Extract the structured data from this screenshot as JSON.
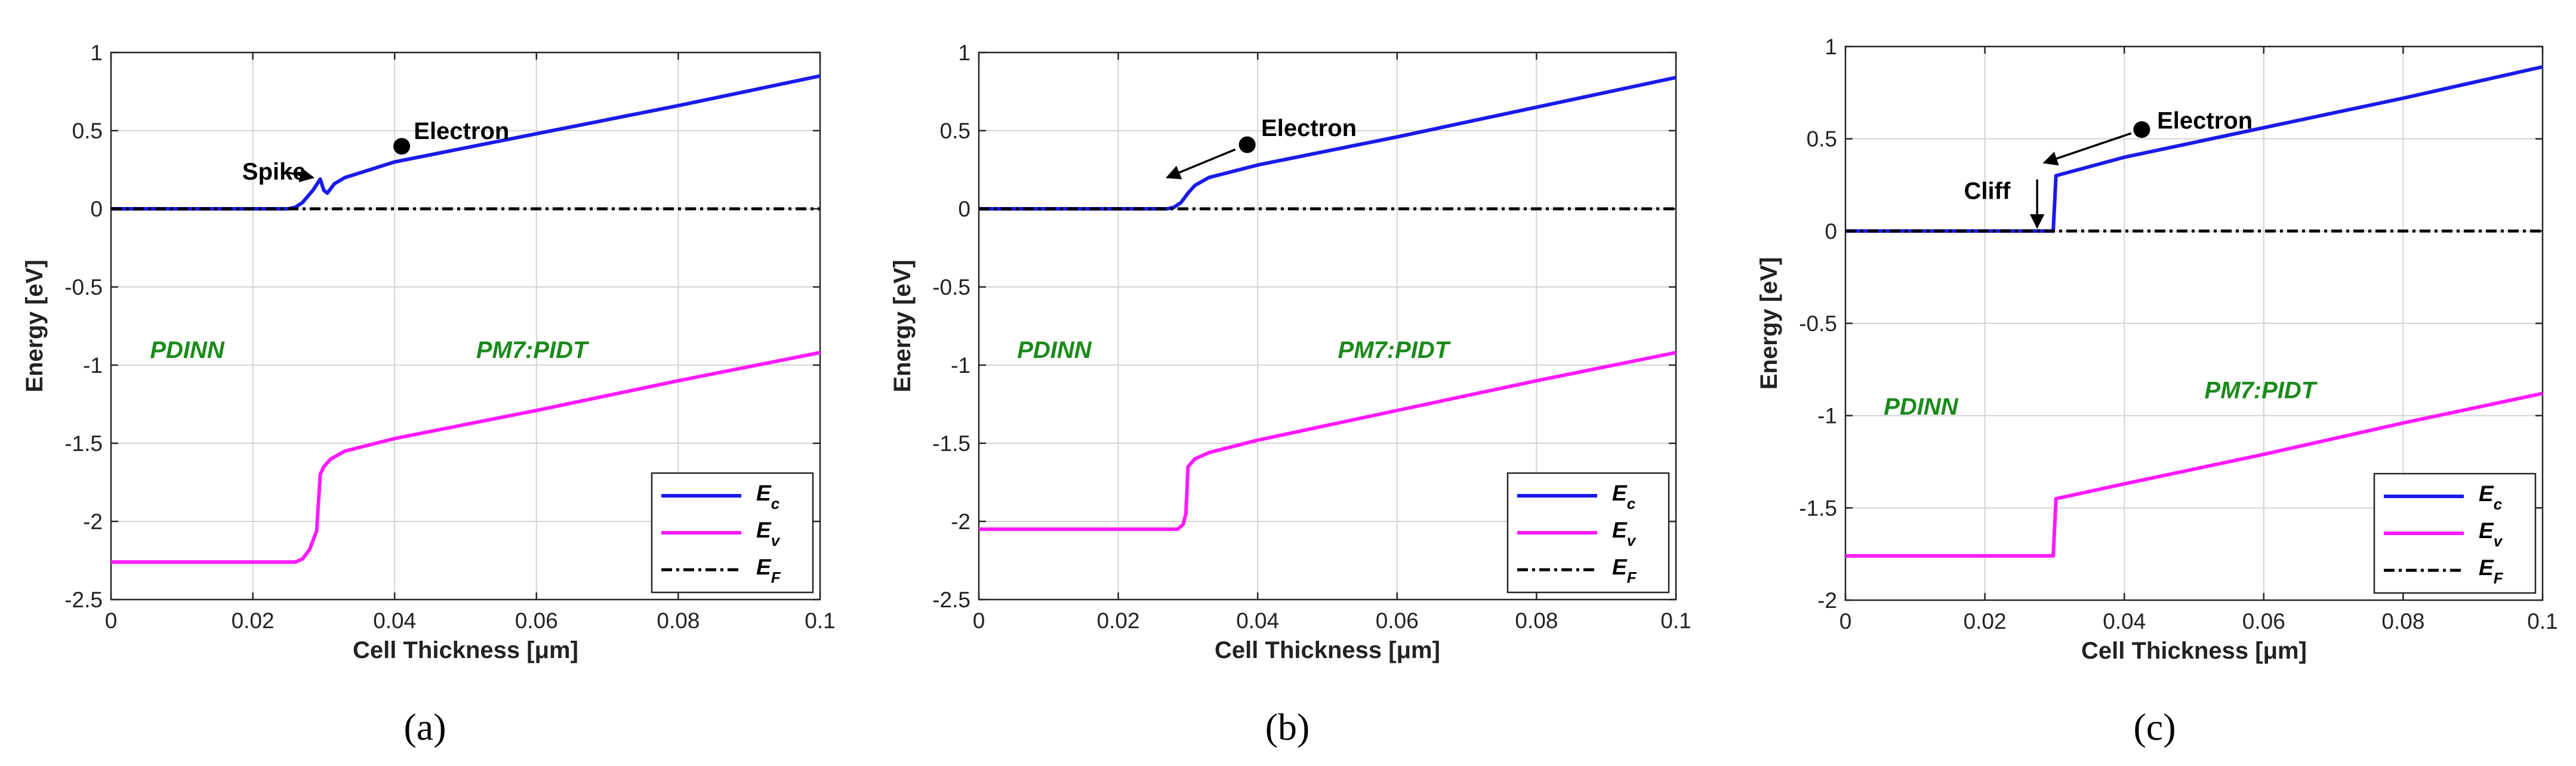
{
  "colors": {
    "ec": "#1a1aeb",
    "ev": "#ff1aff",
    "ef": "#000000",
    "region": "#1a8a1a",
    "grid": "#d4d4d4"
  },
  "chart_data": [
    {
      "type": "line",
      "panel_label_text": "(a)",
      "xlabel": "Cell Thickness [μm]",
      "ylabel": "Energy [eV]",
      "xlim": [
        0,
        0.1
      ],
      "ylim": [
        -2.5,
        1
      ],
      "xticks": [
        0,
        0.02,
        0.04,
        0.06,
        0.08,
        0.1
      ],
      "xtick_labels": [
        "0",
        "0.02",
        "0.04",
        "0.06",
        "0.08",
        "0.1"
      ],
      "yticks": [
        1,
        0.5,
        0,
        -0.5,
        -1,
        -1.5,
        -2,
        -2.5
      ],
      "ytick_labels": [
        "1",
        "0.5",
        "0",
        "-0.5",
        "-1",
        "-1.5",
        "-2",
        "-2.5"
      ],
      "legend": {
        "position": "bottom-right",
        "entries": [
          {
            "key": "ec",
            "main": "E",
            "sub": "c"
          },
          {
            "key": "ev",
            "main": "E",
            "sub": "v"
          },
          {
            "key": "ef",
            "main": "E",
            "sub": "F"
          }
        ]
      },
      "series": [
        {
          "name": "Ec",
          "key": "ec",
          "x": [
            0,
            0.025,
            0.026,
            0.027,
            0.0285,
            0.0295,
            0.03,
            0.0305,
            0.0315,
            0.033,
            0.04,
            0.06,
            0.08,
            0.1
          ],
          "y": [
            0,
            0,
            0.01,
            0.04,
            0.12,
            0.19,
            0.12,
            0.1,
            0.16,
            0.2,
            0.3,
            0.48,
            0.66,
            0.85
          ]
        },
        {
          "name": "Ev",
          "key": "ev",
          "x": [
            0,
            0.026,
            0.027,
            0.028,
            0.029,
            0.0295,
            0.03,
            0.031,
            0.033,
            0.04,
            0.06,
            0.08,
            0.1
          ],
          "y": [
            -2.26,
            -2.26,
            -2.24,
            -2.18,
            -2.06,
            -1.7,
            -1.65,
            -1.6,
            -1.55,
            -1.47,
            -1.29,
            -1.1,
            -0.92
          ]
        },
        {
          "name": "EF",
          "key": "ef",
          "x": [
            0,
            0.1
          ],
          "y": [
            0,
            0
          ]
        }
      ],
      "annotations": [
        {
          "text": "Electron",
          "kind": "label",
          "x": 0.0427,
          "y": 0.5
        },
        {
          "text": "Spike",
          "kind": "label",
          "x": 0.0185,
          "y": 0.24
        },
        {
          "kind": "dot",
          "x": 0.041,
          "y": 0.4
        },
        {
          "kind": "arrow",
          "x1": 0.0245,
          "y1": 0.235,
          "x2": 0.0285,
          "y2": 0.2
        },
        {
          "text": "PDINN",
          "kind": "region",
          "x": 0.0055,
          "y": -0.9
        },
        {
          "text": "PM7:PIDT",
          "kind": "region",
          "x": 0.0515,
          "y": -0.9
        }
      ]
    },
    {
      "type": "line",
      "panel_label_text": "(b)",
      "xlabel": "Cell Thickness [μm]",
      "ylabel": "Energy [eV]",
      "xlim": [
        0,
        0.1
      ],
      "ylim": [
        -2.5,
        1
      ],
      "xticks": [
        0,
        0.02,
        0.04,
        0.06,
        0.08,
        0.1
      ],
      "xtick_labels": [
        "0",
        "0.02",
        "0.04",
        "0.06",
        "0.08",
        "0.1"
      ],
      "yticks": [
        1,
        0.5,
        0,
        -0.5,
        -1,
        -1.5,
        -2,
        -2.5
      ],
      "ytick_labels": [
        "1",
        "0.5",
        "0",
        "-0.5",
        "-1",
        "-1.5",
        "-2",
        "-2.5"
      ],
      "legend": {
        "position": "bottom-right",
        "entries": [
          {
            "key": "ec",
            "main": "E",
            "sub": "c"
          },
          {
            "key": "ev",
            "main": "E",
            "sub": "v"
          },
          {
            "key": "ef",
            "main": "E",
            "sub": "F"
          }
        ]
      },
      "series": [
        {
          "name": "Ec",
          "key": "ec",
          "x": [
            0,
            0.027,
            0.028,
            0.029,
            0.03,
            0.031,
            0.033,
            0.04,
            0.06,
            0.08,
            0.1
          ],
          "y": [
            0,
            0,
            0.01,
            0.04,
            0.1,
            0.15,
            0.2,
            0.28,
            0.46,
            0.65,
            0.84
          ]
        },
        {
          "name": "Ev",
          "key": "ev",
          "x": [
            0,
            0.0285,
            0.0293,
            0.0297,
            0.03,
            0.031,
            0.033,
            0.04,
            0.06,
            0.08,
            0.1
          ],
          "y": [
            -2.05,
            -2.05,
            -2.02,
            -1.95,
            -1.65,
            -1.6,
            -1.56,
            -1.48,
            -1.29,
            -1.1,
            -0.92
          ]
        },
        {
          "name": "EF",
          "key": "ef",
          "x": [
            0,
            0.1
          ],
          "y": [
            0,
            0
          ]
        }
      ],
      "annotations": [
        {
          "text": "Electron",
          "kind": "label",
          "x": 0.0405,
          "y": 0.52
        },
        {
          "kind": "dot",
          "x": 0.0385,
          "y": 0.41
        },
        {
          "kind": "arrow",
          "x1": 0.0368,
          "y1": 0.38,
          "x2": 0.027,
          "y2": 0.2
        },
        {
          "text": "PDINN",
          "kind": "region",
          "x": 0.0055,
          "y": -0.9
        },
        {
          "text": "PM7:PIDT",
          "kind": "region",
          "x": 0.0515,
          "y": -0.9
        }
      ]
    },
    {
      "type": "line",
      "panel_label_text": "(c)",
      "xlabel": "Cell Thickness [μm]",
      "ylabel": "Energy [eV]",
      "xlim": [
        0,
        0.1
      ],
      "ylim": [
        -2,
        1
      ],
      "xticks": [
        0,
        0.02,
        0.04,
        0.06,
        0.08,
        0.1
      ],
      "xtick_labels": [
        "0",
        "0.02",
        "0.04",
        "0.06",
        "0.08",
        "0.1"
      ],
      "yticks": [
        1,
        0.5,
        0,
        -0.5,
        -1,
        -1.5,
        -2
      ],
      "ytick_labels": [
        "1",
        "0.5",
        "0",
        "-0.5",
        "-1",
        "-1.5",
        "-2"
      ],
      "legend": {
        "position": "bottom-right",
        "entries": [
          {
            "key": "ec",
            "main": "E",
            "sub": "c"
          },
          {
            "key": "ev",
            "main": "E",
            "sub": "v"
          },
          {
            "key": "ef",
            "main": "E",
            "sub": "F"
          }
        ]
      },
      "series": [
        {
          "name": "Ec",
          "key": "ec",
          "x": [
            0,
            0.0298,
            0.0302,
            0.04,
            0.06,
            0.08,
            0.1
          ],
          "y": [
            0,
            0,
            0.3,
            0.4,
            0.56,
            0.72,
            0.89
          ]
        },
        {
          "name": "Ev",
          "key": "ev",
          "x": [
            0,
            0.0298,
            0.0302,
            0.04,
            0.06,
            0.08,
            0.1
          ],
          "y": [
            -1.76,
            -1.76,
            -1.45,
            -1.37,
            -1.21,
            -1.04,
            -0.88
          ]
        },
        {
          "name": "EF",
          "key": "ef",
          "x": [
            0,
            0.1
          ],
          "y": [
            0,
            0
          ]
        }
      ],
      "annotations": [
        {
          "text": "Electron",
          "kind": "label",
          "x": 0.0447,
          "y": 0.6
        },
        {
          "text": "Cliff",
          "kind": "label",
          "x": 0.017,
          "y": 0.22
        },
        {
          "kind": "dot",
          "x": 0.0425,
          "y": 0.55
        },
        {
          "kind": "arrow",
          "x1": 0.041,
          "y1": 0.53,
          "x2": 0.0285,
          "y2": 0.37
        },
        {
          "kind": "arrow",
          "x1": 0.0275,
          "y1": 0.28,
          "x2": 0.0275,
          "y2": 0.02
        },
        {
          "text": "PDINN",
          "kind": "region",
          "x": 0.0055,
          "y": -0.95
        },
        {
          "text": "PM7:PIDT",
          "kind": "region",
          "x": 0.0515,
          "y": -0.86
        }
      ]
    }
  ]
}
